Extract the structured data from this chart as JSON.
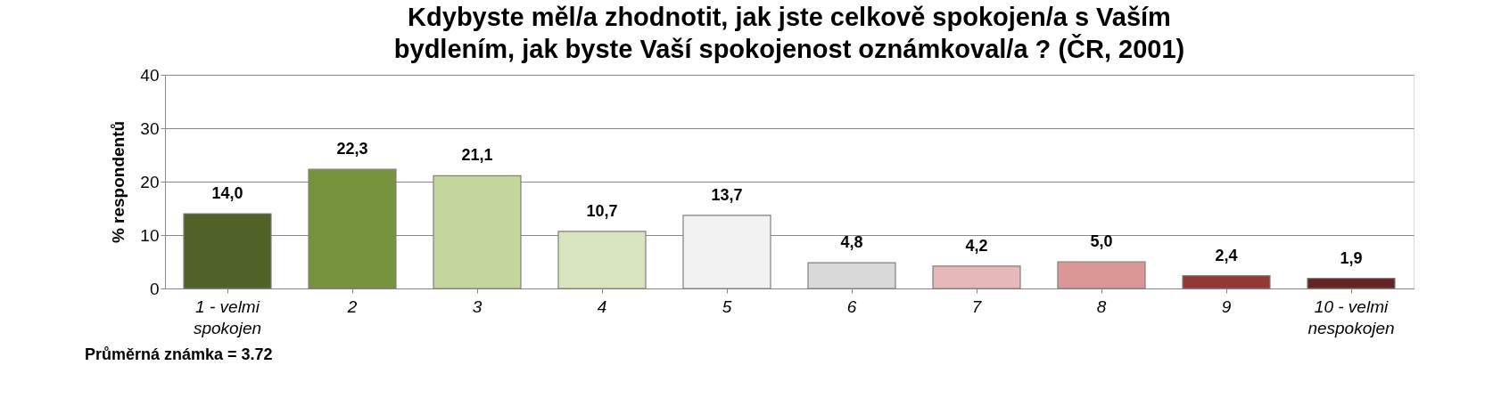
{
  "chart_data": {
    "type": "bar",
    "title": [
      "Kdybyste měl/a zhodnotit, jak jste celkově spokojen/a s Vaším",
      "bydlením, jak byste Vaší spokojenost oznámkoval/a ? (ČR, 2001)"
    ],
    "ylabel": "% respondentů",
    "categories": [
      "1 - velmi spokojen",
      "2",
      "3",
      "4",
      "5",
      "6",
      "7",
      "8",
      "9",
      "10 - velmi nespokojen"
    ],
    "values": [
      14.0,
      22.3,
      21.1,
      10.7,
      13.7,
      4.8,
      4.2,
      5.0,
      2.4,
      1.9
    ],
    "value_labels": [
      "14,0",
      "22,3",
      "21,1",
      "10,7",
      "13,7",
      "4,8",
      "4,2",
      "5,0",
      "2,4",
      "1,9"
    ],
    "colors": [
      "#4f6228",
      "#77933c",
      "#c3d69b",
      "#d7e4bd",
      "#f2f2f2",
      "#d9d9d9",
      "#e6b9b8",
      "#d99694",
      "#953735",
      "#632423"
    ],
    "ylim": [
      0,
      40
    ],
    "yticks": [
      0,
      10,
      20,
      30,
      40
    ],
    "grid": "y",
    "annotations": [
      "Průměrná známka = 3.72"
    ]
  }
}
